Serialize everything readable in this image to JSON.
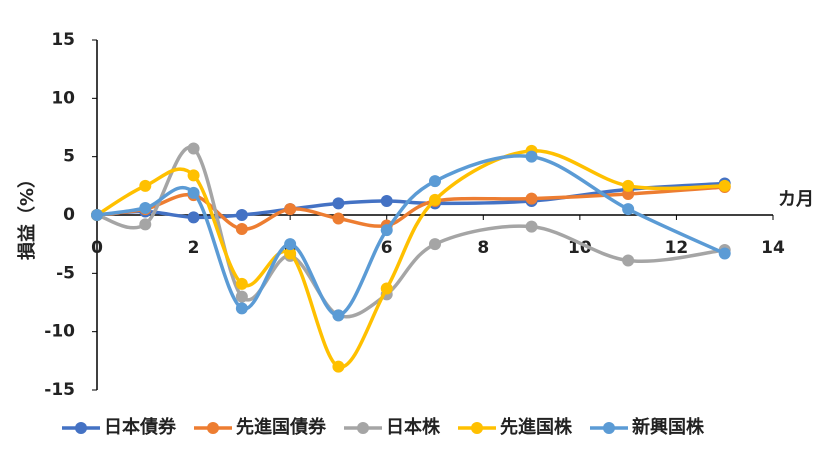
{
  "chart_data": {
    "type": "line",
    "x_label": "カ月",
    "y_label": "損益（%）",
    "x": [
      0,
      1,
      2,
      3,
      4,
      5,
      6,
      7,
      9,
      11,
      13
    ],
    "xlim": [
      0,
      14
    ],
    "xticks": [
      0,
      2,
      4,
      6,
      8,
      10,
      12,
      14
    ],
    "ylim": [
      -15,
      15
    ],
    "yticks": [
      -15,
      -10,
      -5,
      0,
      5,
      10,
      15
    ],
    "smooth": true,
    "series": [
      {
        "name": "日本債券",
        "color": "#4472c4",
        "values": [
          0,
          0.3,
          -0.2,
          0,
          0.5,
          1,
          1.2,
          1,
          1.2,
          2.2,
          2.7
        ]
      },
      {
        "name": "先進国債券",
        "color": "#ed7d31",
        "values": [
          0,
          0.5,
          1.7,
          -1.2,
          0.5,
          -0.3,
          -0.9,
          1.2,
          1.4,
          1.8,
          2.4
        ]
      },
      {
        "name": "日本株",
        "color": "#a5a5a5",
        "values": [
          0,
          -0.8,
          5.7,
          -7,
          -3.5,
          -8.6,
          -6.8,
          -2.5,
          -1,
          -3.9,
          -3
        ]
      },
      {
        "name": "先進国株",
        "color": "#ffc000",
        "values": [
          0,
          2.5,
          3.4,
          -5.9,
          -3.3,
          -13,
          -6.3,
          1.3,
          5.5,
          2.5,
          2.5
        ]
      },
      {
        "name": "新興国株",
        "color": "#5b9bd5",
        "values": [
          0,
          0.6,
          1.9,
          -8,
          -2.5,
          -8.6,
          -1.3,
          2.9,
          5,
          0.5,
          -3.3
        ]
      }
    ]
  }
}
